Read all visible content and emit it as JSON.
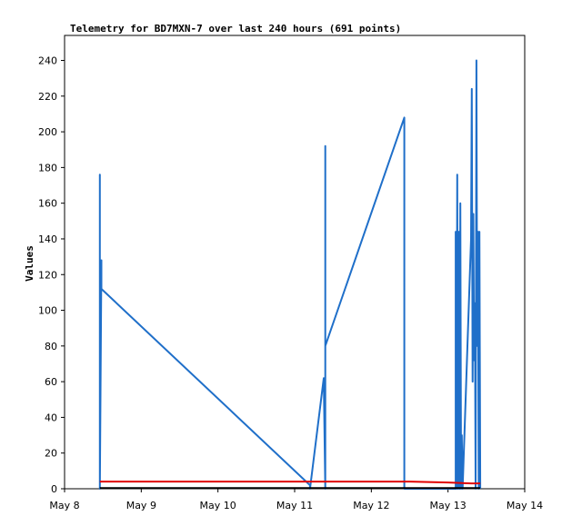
{
  "chart_data": {
    "type": "line",
    "title": "Telemetry for BD7MXN-7 over last 240 hours (691 points)",
    "xlabel": "",
    "ylabel": "Values",
    "ylim": [
      0,
      254
    ],
    "xlim": [
      8.0,
      14.0
    ],
    "yticks": [
      0,
      20,
      40,
      60,
      80,
      100,
      120,
      140,
      160,
      180,
      200,
      220,
      240
    ],
    "xticks": [
      {
        "v": 8,
        "label": "May 8"
      },
      {
        "v": 9,
        "label": "May 9"
      },
      {
        "v": 10,
        "label": "May 10"
      },
      {
        "v": 11,
        "label": "May 11"
      },
      {
        "v": 12,
        "label": "May 12"
      },
      {
        "v": 13,
        "label": "May 13"
      },
      {
        "v": 14,
        "label": "May 14"
      }
    ],
    "grid": false,
    "series": [
      {
        "color": "#1f6fc9",
        "points": [
          [
            8.46,
            0
          ],
          [
            8.46,
            176
          ],
          [
            8.46,
            0
          ],
          [
            8.48,
            128
          ],
          [
            8.48,
            112
          ],
          [
            11.2,
            2
          ],
          [
            11.2,
            0
          ],
          [
            11.38,
            62
          ],
          [
            11.4,
            0
          ],
          [
            11.4,
            192
          ],
          [
            11.4,
            80
          ],
          [
            12.43,
            208
          ],
          [
            12.43,
            0
          ],
          [
            13.1,
            0
          ],
          [
            13.1,
            144
          ],
          [
            13.11,
            0
          ],
          [
            13.12,
            176
          ],
          [
            13.13,
            0
          ],
          [
            13.14,
            144
          ],
          [
            13.15,
            0
          ],
          [
            13.16,
            160
          ],
          [
            13.17,
            0
          ],
          [
            13.18,
            30
          ],
          [
            13.19,
            0
          ],
          [
            13.3,
            140
          ],
          [
            13.31,
            224
          ],
          [
            13.32,
            60
          ],
          [
            13.33,
            154
          ],
          [
            13.34,
            72
          ],
          [
            13.35,
            104
          ],
          [
            13.36,
            0
          ],
          [
            13.37,
            240
          ],
          [
            13.38,
            80
          ],
          [
            13.39,
            144
          ],
          [
            13.4,
            0
          ],
          [
            13.41,
            144
          ],
          [
            13.42,
            0
          ]
        ]
      },
      {
        "color": "#e00000",
        "points": [
          [
            8.46,
            4
          ],
          [
            9.5,
            4
          ],
          [
            10.5,
            4
          ],
          [
            11.5,
            4
          ],
          [
            12.5,
            4
          ],
          [
            13.0,
            3.5
          ],
          [
            13.3,
            3
          ],
          [
            13.42,
            3
          ]
        ]
      },
      {
        "color": "#000000",
        "points": [
          [
            8.46,
            0.4
          ],
          [
            13.42,
            0.4
          ]
        ]
      }
    ]
  }
}
